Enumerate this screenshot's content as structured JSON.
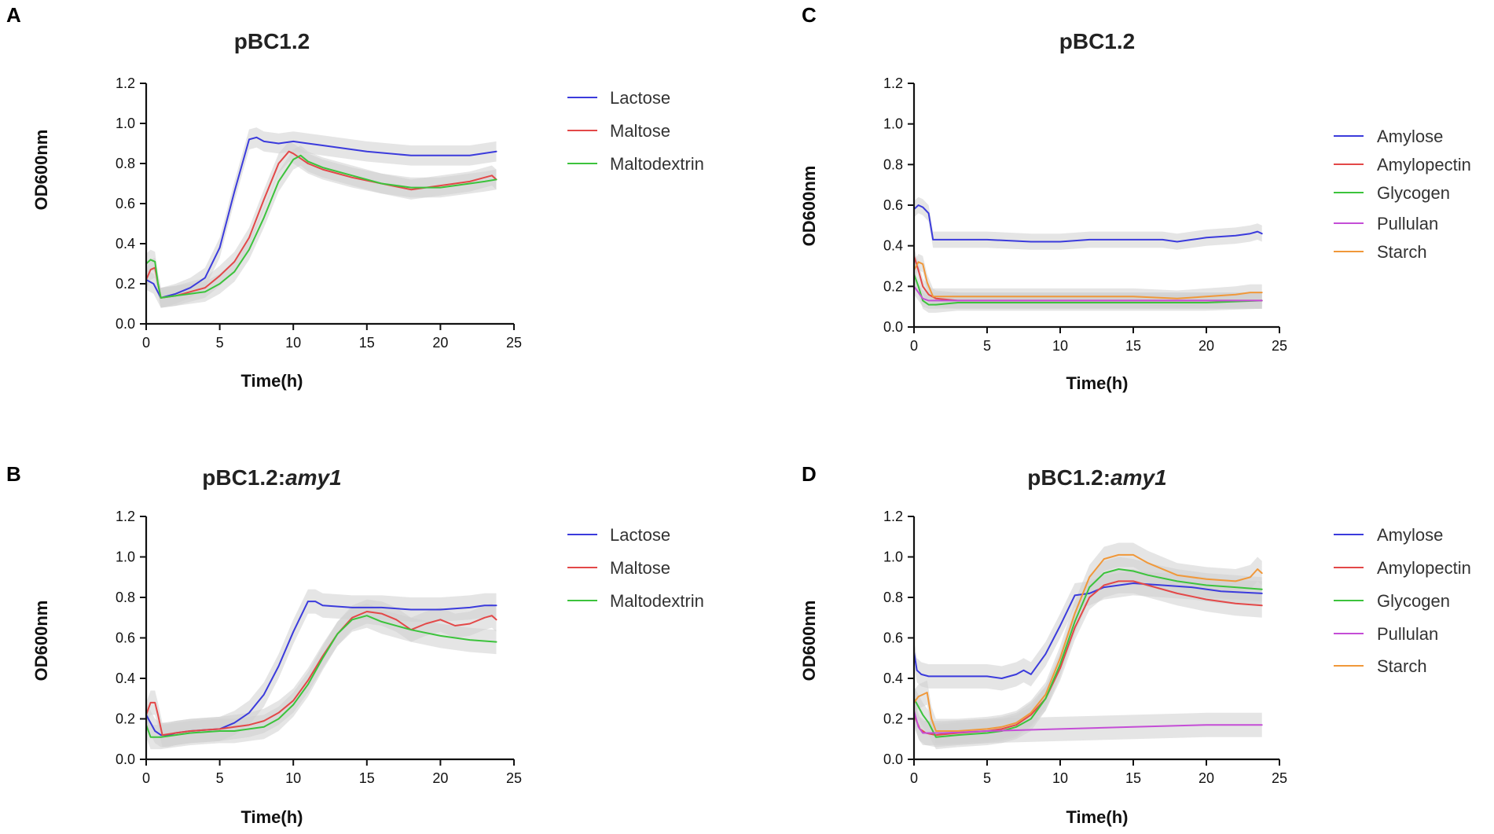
{
  "chart_data": [
    {
      "panel": "A",
      "type": "line",
      "title_plain": "pBC1.2",
      "title_italic": "",
      "xlabel": "Time(h)",
      "ylabel": "OD600nm",
      "xlim": [
        0,
        25
      ],
      "ylim": [
        0,
        1.2
      ],
      "xticks": [
        0,
        5,
        10,
        15,
        20,
        25
      ],
      "yticks": [
        0.0,
        0.2,
        0.4,
        0.6,
        0.8,
        1.0,
        1.2
      ],
      "ytick_labels": [
        "0.0",
        "0.2",
        "0.4",
        "0.6",
        "0.8",
        "1.0",
        "1.2"
      ],
      "band_width": 0.05,
      "series": [
        {
          "name": "Lactose",
          "color": "#3b3bdc",
          "x": [
            0,
            0.5,
            1,
            1.5,
            2,
            3,
            4,
            5,
            6,
            7,
            7.5,
            8,
            9,
            10,
            11,
            12,
            15,
            18,
            20,
            22,
            23.8
          ],
          "y": [
            0.22,
            0.2,
            0.13,
            0.14,
            0.15,
            0.18,
            0.23,
            0.38,
            0.66,
            0.92,
            0.93,
            0.91,
            0.9,
            0.91,
            0.9,
            0.89,
            0.86,
            0.84,
            0.84,
            0.84,
            0.86
          ]
        },
        {
          "name": "Maltose",
          "color": "#e34848",
          "x": [
            0,
            0.3,
            0.6,
            0.8,
            1,
            2,
            3,
            4,
            5,
            6,
            7,
            8,
            9,
            9.7,
            10,
            11,
            12,
            14,
            16,
            18,
            20,
            22,
            23,
            23.5,
            23.8
          ],
          "y": [
            0.22,
            0.27,
            0.28,
            0.2,
            0.13,
            0.14,
            0.16,
            0.18,
            0.24,
            0.31,
            0.43,
            0.62,
            0.8,
            0.86,
            0.85,
            0.8,
            0.77,
            0.73,
            0.7,
            0.67,
            0.69,
            0.71,
            0.73,
            0.74,
            0.72
          ]
        },
        {
          "name": "Maltodextrin",
          "color": "#3cc33c",
          "x": [
            0,
            0.3,
            0.6,
            0.8,
            1,
            2,
            3,
            4,
            5,
            6,
            7,
            8,
            9,
            10,
            10.5,
            11,
            12,
            14,
            16,
            18,
            20,
            22,
            23,
            23.8
          ],
          "y": [
            0.3,
            0.32,
            0.31,
            0.2,
            0.13,
            0.14,
            0.15,
            0.16,
            0.2,
            0.26,
            0.37,
            0.53,
            0.71,
            0.82,
            0.84,
            0.81,
            0.78,
            0.74,
            0.7,
            0.68,
            0.68,
            0.7,
            0.71,
            0.72
          ]
        }
      ]
    },
    {
      "panel": "C",
      "type": "line",
      "title_plain": "pBC1.2",
      "title_italic": "",
      "xlabel": "Time(h)",
      "ylabel": "OD600nm",
      "xlim": [
        0,
        25
      ],
      "ylim": [
        0,
        1.2
      ],
      "xticks": [
        0,
        5,
        10,
        15,
        20,
        25
      ],
      "yticks": [
        0.0,
        0.2,
        0.4,
        0.6,
        0.8,
        1.0,
        1.2
      ],
      "ytick_labels": [
        "0.0",
        "0.2",
        "0.4",
        "0.6",
        "0.8",
        "1.0",
        "1.2"
      ],
      "band_width": 0.04,
      "series": [
        {
          "name": "Amylose",
          "color": "#3b3bdc",
          "x": [
            0,
            0.3,
            0.6,
            1,
            1.3,
            2,
            5,
            8,
            10,
            12,
            15,
            17,
            18,
            19,
            20,
            22,
            23,
            23.5,
            23.8
          ],
          "y": [
            0.58,
            0.6,
            0.59,
            0.56,
            0.43,
            0.43,
            0.43,
            0.42,
            0.42,
            0.43,
            0.43,
            0.43,
            0.42,
            0.43,
            0.44,
            0.45,
            0.46,
            0.47,
            0.46
          ]
        },
        {
          "name": "Amylopectin",
          "color": "#e34848",
          "x": [
            0,
            0.3,
            0.6,
            1,
            1.5,
            3,
            5,
            10,
            15,
            20,
            23.8
          ],
          "y": [
            0.35,
            0.28,
            0.2,
            0.16,
            0.14,
            0.13,
            0.13,
            0.13,
            0.13,
            0.13,
            0.13
          ]
        },
        {
          "name": "Glycogen",
          "color": "#3cc33c",
          "x": [
            0,
            0.3,
            0.6,
            1,
            1.5,
            3,
            5,
            10,
            15,
            20,
            23.8
          ],
          "y": [
            0.26,
            0.2,
            0.13,
            0.11,
            0.11,
            0.12,
            0.12,
            0.12,
            0.12,
            0.12,
            0.13
          ]
        },
        {
          "name": "Pullulan",
          "color": "#c44dd6",
          "x": [
            0,
            0.3,
            0.6,
            1,
            1.5,
            3,
            5,
            10,
            15,
            20,
            23.8
          ],
          "y": [
            0.2,
            0.17,
            0.14,
            0.13,
            0.13,
            0.13,
            0.13,
            0.13,
            0.13,
            0.13,
            0.13
          ]
        },
        {
          "name": "Starch",
          "color": "#f0983a",
          "x": [
            0,
            0.3,
            0.6,
            0.9,
            1.3,
            2,
            5,
            10,
            15,
            18,
            20,
            22,
            23,
            23.8
          ],
          "y": [
            0.28,
            0.32,
            0.31,
            0.22,
            0.15,
            0.15,
            0.15,
            0.15,
            0.15,
            0.14,
            0.15,
            0.16,
            0.17,
            0.17
          ]
        }
      ]
    },
    {
      "panel": "B",
      "type": "line",
      "title_plain": "pBC1.2:",
      "title_italic": "amy1",
      "xlabel": "Time(h)",
      "ylabel": "OD600nm",
      "xlim": [
        0,
        25
      ],
      "ylim": [
        0,
        1.2
      ],
      "xticks": [
        0,
        5,
        10,
        15,
        20,
        25
      ],
      "yticks": [
        0.0,
        0.2,
        0.4,
        0.6,
        0.8,
        1.0,
        1.2
      ],
      "ytick_labels": [
        "0.0",
        "0.2",
        "0.4",
        "0.6",
        "0.8",
        "1.0",
        "1.2"
      ],
      "band_width": 0.06,
      "series": [
        {
          "name": "Lactose",
          "color": "#3b3bdc",
          "x": [
            0,
            0.3,
            0.6,
            1,
            1.5,
            2,
            3,
            5,
            6,
            7,
            8,
            9,
            10,
            11,
            11.5,
            12,
            14,
            16,
            18,
            20,
            22,
            23,
            23.8
          ],
          "y": [
            0.22,
            0.18,
            0.14,
            0.12,
            0.12,
            0.13,
            0.14,
            0.15,
            0.18,
            0.23,
            0.32,
            0.46,
            0.63,
            0.78,
            0.78,
            0.76,
            0.75,
            0.75,
            0.74,
            0.74,
            0.75,
            0.76,
            0.76
          ]
        },
        {
          "name": "Maltose",
          "color": "#e34848",
          "x": [
            0,
            0.3,
            0.6,
            0.8,
            1.1,
            2,
            3,
            5,
            6,
            7,
            8,
            9,
            10,
            11,
            12,
            13,
            14,
            15,
            16,
            17,
            18,
            19,
            20,
            21,
            22,
            23,
            23.5,
            23.8
          ],
          "y": [
            0.22,
            0.28,
            0.28,
            0.22,
            0.12,
            0.13,
            0.14,
            0.15,
            0.16,
            0.17,
            0.19,
            0.23,
            0.29,
            0.39,
            0.51,
            0.62,
            0.7,
            0.73,
            0.72,
            0.69,
            0.64,
            0.67,
            0.69,
            0.66,
            0.67,
            0.7,
            0.71,
            0.69
          ]
        },
        {
          "name": "Maltodextrin",
          "color": "#3cc33c",
          "x": [
            0,
            0.3,
            0.6,
            1,
            2,
            3,
            5,
            6,
            7,
            8,
            9,
            10,
            11,
            12,
            13,
            14,
            15,
            16,
            18,
            20,
            22,
            23.8
          ],
          "y": [
            0.17,
            0.11,
            0.11,
            0.11,
            0.12,
            0.13,
            0.14,
            0.14,
            0.15,
            0.16,
            0.2,
            0.27,
            0.37,
            0.5,
            0.62,
            0.69,
            0.71,
            0.68,
            0.64,
            0.61,
            0.59,
            0.58
          ]
        }
      ]
    },
    {
      "panel": "D",
      "type": "line",
      "title_plain": "pBC1.2:",
      "title_italic": "amy1",
      "xlabel": "Time(h)",
      "ylabel": "OD600nm",
      "xlim": [
        0,
        25
      ],
      "ylim": [
        0,
        1.2
      ],
      "xticks": [
        0,
        5,
        10,
        15,
        20,
        25
      ],
      "yticks": [
        0.0,
        0.2,
        0.4,
        0.6,
        0.8,
        1.0,
        1.2
      ],
      "ytick_labels": [
        "0.0",
        "0.2",
        "0.4",
        "0.6",
        "0.8",
        "1.0",
        "1.2"
      ],
      "band_width": 0.06,
      "series": [
        {
          "name": "Amylose",
          "color": "#3b3bdc",
          "x": [
            0,
            0.2,
            0.5,
            1,
            2,
            4,
            5,
            6,
            7,
            7.5,
            8,
            9,
            10,
            11,
            12,
            13,
            15,
            17,
            19,
            21,
            23.8
          ],
          "y": [
            0.53,
            0.44,
            0.42,
            0.41,
            0.41,
            0.41,
            0.41,
            0.4,
            0.42,
            0.44,
            0.42,
            0.52,
            0.66,
            0.81,
            0.82,
            0.85,
            0.87,
            0.86,
            0.85,
            0.83,
            0.82
          ]
        },
        {
          "name": "Amylopectin",
          "color": "#e34848",
          "x": [
            0,
            0.4,
            0.8,
            1.5,
            3,
            5,
            6,
            7,
            8,
            9,
            10,
            11,
            12,
            13,
            14,
            15,
            16,
            18,
            20,
            22,
            23.8
          ],
          "y": [
            0.22,
            0.15,
            0.13,
            0.12,
            0.13,
            0.14,
            0.15,
            0.17,
            0.22,
            0.3,
            0.45,
            0.65,
            0.8,
            0.86,
            0.88,
            0.88,
            0.86,
            0.82,
            0.79,
            0.77,
            0.76
          ]
        },
        {
          "name": "Glycogen",
          "color": "#3cc33c",
          "x": [
            0,
            0.3,
            0.6,
            1,
            1.5,
            3,
            5,
            6,
            7,
            8,
            9,
            10,
            11,
            12,
            13,
            14,
            15,
            16,
            18,
            20,
            22,
            23.8
          ],
          "y": [
            0.3,
            0.26,
            0.22,
            0.18,
            0.11,
            0.12,
            0.13,
            0.14,
            0.16,
            0.2,
            0.3,
            0.47,
            0.68,
            0.85,
            0.92,
            0.94,
            0.93,
            0.91,
            0.88,
            0.86,
            0.85,
            0.84
          ]
        },
        {
          "name": "Pullulan",
          "color": "#c44dd6",
          "x": [
            0,
            0.3,
            0.6,
            1,
            2,
            5,
            10,
            15,
            20,
            23.8
          ],
          "y": [
            0.24,
            0.16,
            0.13,
            0.13,
            0.13,
            0.14,
            0.15,
            0.16,
            0.17,
            0.17
          ]
        },
        {
          "name": "Starch",
          "color": "#f0983a",
          "x": [
            0,
            0.3,
            0.6,
            0.9,
            1.2,
            1.5,
            3,
            5,
            6,
            7,
            8,
            9,
            10,
            11,
            12,
            13,
            14,
            15,
            16,
            18,
            20,
            22,
            23,
            23.5,
            23.8
          ],
          "y": [
            0.28,
            0.31,
            0.32,
            0.33,
            0.2,
            0.14,
            0.14,
            0.15,
            0.16,
            0.18,
            0.23,
            0.32,
            0.5,
            0.72,
            0.9,
            0.99,
            1.01,
            1.01,
            0.97,
            0.91,
            0.89,
            0.88,
            0.9,
            0.94,
            0.92
          ]
        }
      ]
    }
  ]
}
